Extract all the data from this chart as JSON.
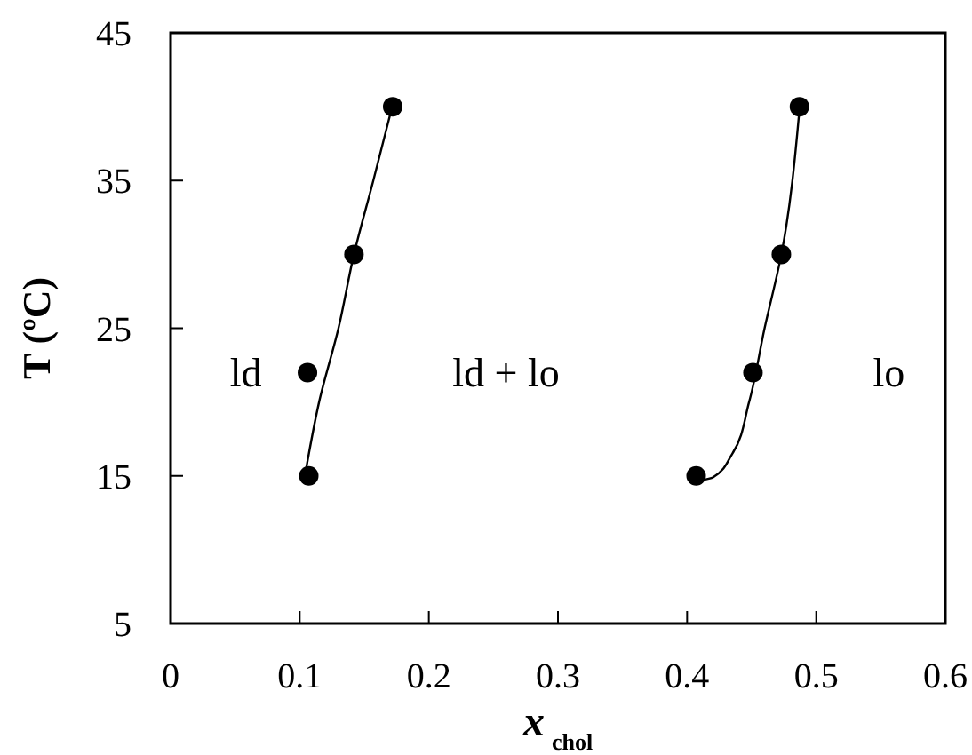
{
  "chart_data": {
    "type": "scatter",
    "xlabel": "x$_{chol}$",
    "ylabel": "T (ºC)",
    "xlim": [
      0,
      0.6
    ],
    "xticks": [
      0,
      0.1,
      0.2,
      0.3,
      0.4,
      0.5,
      0.6
    ],
    "ylim": [
      5,
      45
    ],
    "yticks": [
      5,
      15,
      25,
      35,
      45
    ],
    "grid": false,
    "series": [
      {
        "type": "line",
        "color": "#000000",
        "marker": "none",
        "x": [
          0.105,
          0.115,
          0.13,
          0.142,
          0.157,
          0.171
        ],
        "values": [
          15.5,
          20,
          25,
          30,
          35,
          39.8
        ]
      },
      {
        "type": "line",
        "color": "#000000",
        "marker": "none",
        "x": [
          0.41,
          0.42,
          0.435,
          0.448,
          0.46,
          0.473,
          0.487
        ],
        "values": [
          14.7,
          14.9,
          16.5,
          20,
          25,
          30,
          39.8
        ]
      },
      {
        "marker": "circle",
        "color": "#000000",
        "x": [
          0.107,
          0.106,
          0.142,
          0.172,
          0.407,
          0.451,
          0.473,
          0.487
        ],
        "values": [
          15,
          22,
          30,
          40,
          15,
          22,
          30,
          40
        ]
      }
    ],
    "annotations": [
      "ld",
      "ld + lo",
      "lo"
    ]
  }
}
